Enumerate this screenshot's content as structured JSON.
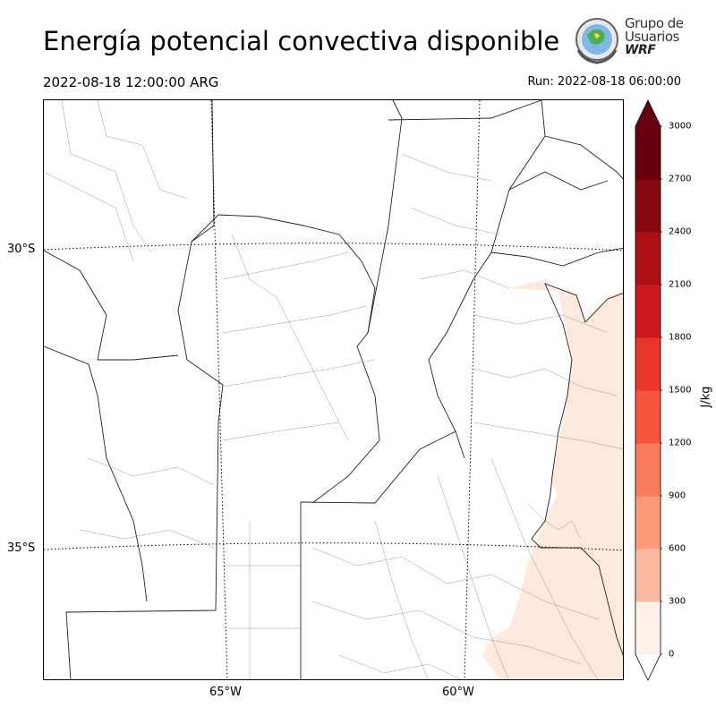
{
  "title": "Energía potencial convectiva disponible",
  "valid_time": "2022-08-18 12:00:00 ARG",
  "run_time": "Run: 2022-08-18 06:00:00",
  "logo": {
    "line1": "Grupo de",
    "line2": "Usuarios",
    "line3": "WRF"
  },
  "map": {
    "lat_labels": [
      "30°S",
      "35°S"
    ],
    "lon_labels": [
      "65°W",
      "60°W"
    ],
    "field": "CAPE",
    "max_shown_level": "0–300 J/kg",
    "colors": {
      "land": "#ffffff",
      "cape_low": "#fee9df"
    }
  },
  "colorbar": {
    "unit": "J/kg",
    "ticks": [
      "0",
      "300",
      "600",
      "900",
      "1200",
      "1500",
      "1800",
      "2100",
      "2400",
      "2700",
      "3000"
    ],
    "colors": [
      "#fff0e9",
      "#fddccd",
      "#fcbba1",
      "#fc9a79",
      "#fb7c5c",
      "#f6553c",
      "#ea362a",
      "#cd1a1e",
      "#ad1116",
      "#860811",
      "#67000d"
    ],
    "extend_over": "#67000d"
  }
}
